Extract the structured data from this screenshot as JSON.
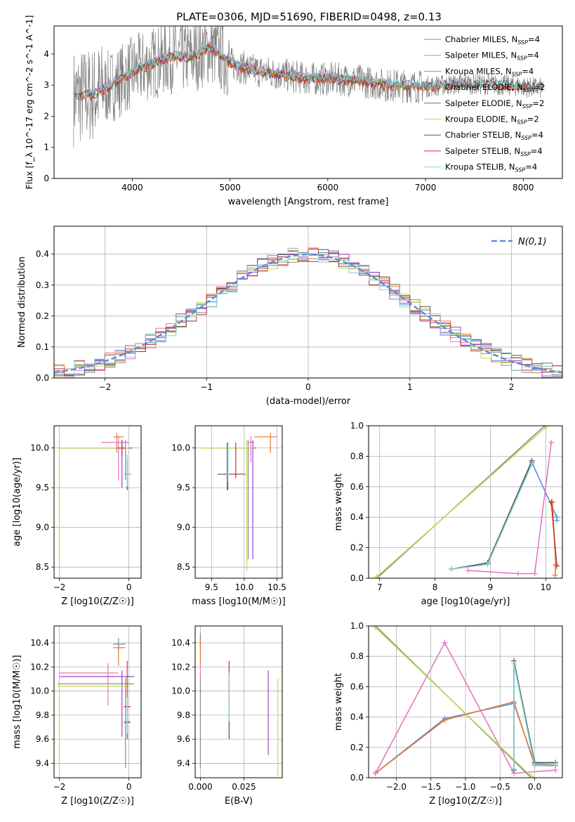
{
  "figure_title": "PLATE=0306, MJD=51690, FIBERID=0498, z=0.13",
  "colors": {
    "Chabrier MILES": "#5b8fd9",
    "Salpeter MILES": "#e377c2",
    "Kroupa MILES": "#e07b39",
    "Chabrier ELODIE": "#8c8c8c",
    "Salpeter ELODIE": "#a63fbf",
    "Kroupa ELODIE": "#c5d94c",
    "Chabrier STELIB": "#555555",
    "Salpeter STELIB": "#c0392b",
    "Kroupa STELIB": "#7fd6d6",
    "data": "#808080",
    "gaussian": "#5b8fd9"
  },
  "chart_data": [
    {
      "id": "spectrum",
      "type": "line",
      "title": "PLATE=0306, MJD=51690, FIBERID=0498, z=0.13",
      "xlabel": "wavelength [Angstrom, rest frame]",
      "ylabel": "Flux [f_λ 10^-17 erg cm^-2 s^-1 A^-1]",
      "xlim": [
        3200,
        8400
      ],
      "ylim": [
        0,
        4.9
      ],
      "xticks": [
        4000,
        5000,
        6000,
        7000,
        8000
      ],
      "yticks": [
        0,
        1,
        2,
        3,
        4
      ],
      "grid": false,
      "legend": "upper right",
      "legend_entries": [
        {
          "name": "Chabrier MILES",
          "sub": "SSP",
          "n": "4"
        },
        {
          "name": "Salpeter MILES",
          "sub": "SSP",
          "n": "4"
        },
        {
          "name": "Kroupa MILES",
          "sub": "SSP",
          "n": "4"
        },
        {
          "name": "Chabrier ELODIE",
          "sub": "SSP",
          "n": "2"
        },
        {
          "name": "Salpeter ELODIE",
          "sub": "SSP",
          "n": "2"
        },
        {
          "name": "Kroupa ELODIE",
          "sub": "SSP",
          "n": "2"
        },
        {
          "name": "Chabrier STELIB",
          "sub": "SSP",
          "n": "4"
        },
        {
          "name": "Salpeter STELIB",
          "sub": "SSP",
          "n": "4"
        },
        {
          "name": "Kroupa STELIB",
          "sub": "SSP",
          "n": "4"
        }
      ],
      "continuum_points": [
        [
          3400,
          2.6
        ],
        [
          3600,
          2.7
        ],
        [
          3800,
          3.0
        ],
        [
          4000,
          3.4
        ],
        [
          4200,
          3.7
        ],
        [
          4400,
          3.9
        ],
        [
          4600,
          3.9
        ],
        [
          4800,
          4.2
        ],
        [
          4900,
          3.95
        ],
        [
          5000,
          3.7
        ],
        [
          5200,
          3.5
        ],
        [
          5500,
          3.35
        ],
        [
          5800,
          3.2
        ],
        [
          6000,
          3.2
        ],
        [
          6300,
          3.15
        ],
        [
          6600,
          3.0
        ],
        [
          7000,
          2.95
        ],
        [
          7400,
          3.05
        ],
        [
          7800,
          3.0
        ],
        [
          8200,
          2.9
        ]
      ],
      "model_ranges": {
        "MILES": [
          3540,
          7410
        ],
        "ELODIE": [
          3900,
          6800
        ],
        "STELIB": [
          3400,
          8200
        ]
      }
    },
    {
      "id": "residual_hist",
      "type": "line",
      "xlabel": "(data-model)/error",
      "ylabel": "Normed distribution",
      "xlim": [
        -2.5,
        2.5
      ],
      "ylim": [
        0,
        0.49
      ],
      "xticks": [
        -2,
        -1,
        0,
        1,
        2
      ],
      "xtick_labels": [
        "−2",
        "−1",
        "0",
        "1",
        "2"
      ],
      "yticks": [
        0,
        0.1,
        0.2,
        0.3,
        0.4
      ],
      "ytick_labels": [
        "0.0",
        "0.1",
        "0.2",
        "0.3",
        "0.4"
      ],
      "grid": true,
      "legend": "upper right",
      "legend_label": "N(0,1)",
      "bin_width": 0.1,
      "bin_start": -2.5
    },
    {
      "id": "age_vs_Z",
      "type": "scatter",
      "xlabel": "Z [log10(Z/Z☉)]",
      "ylabel": "age [log10(age/yr)]",
      "xlim": [
        -2.15,
        0.35
      ],
      "ylim": [
        8.36,
        10.28
      ],
      "xticks": [
        -2,
        0
      ],
      "xtick_labels": [
        "−2",
        "0"
      ],
      "yticks": [
        8.5,
        9.0,
        9.5,
        10.0
      ],
      "ytick_labels": [
        "8.5",
        "9.0",
        "9.5",
        "10.0"
      ],
      "grid": true,
      "points": [
        {
          "model": "Chabrier MILES",
          "x": -0.05,
          "y": 9.67,
          "xerr": [
            0.08,
            0.08
          ],
          "yerr": [
            0.2,
            0.12
          ]
        },
        {
          "model": "Salpeter MILES",
          "x": -0.3,
          "y": 10.07,
          "xerr": [
            0.5,
            0.3
          ],
          "yerr": [
            0.48,
            0.08
          ]
        },
        {
          "model": "Kroupa MILES",
          "x": -0.35,
          "y": 10.14,
          "xerr": [
            0.1,
            0.2
          ],
          "yerr": [
            0.2,
            0.05
          ]
        },
        {
          "model": "Chabrier ELODIE",
          "x": -0.1,
          "y": 10.0,
          "xerr": [
            1.9,
            0.15
          ],
          "yerr": [
            0.4,
            0.1
          ]
        },
        {
          "model": "Salpeter ELODIE",
          "x": -0.2,
          "y": 10.0,
          "xerr": [
            1.8,
            0.3
          ],
          "yerr": [
            0.5,
            0.1
          ]
        },
        {
          "model": "Kroupa ELODIE",
          "x": -2.0,
          "y": 10.0,
          "xerr": [
            0.05,
            2.0
          ],
          "yerr": [
            1.5,
            0.15
          ]
        },
        {
          "model": "Chabrier STELIB",
          "x": -0.05,
          "y": 9.67,
          "xerr": [
            0.05,
            0.1
          ],
          "yerr": [
            0.2,
            0.2
          ]
        },
        {
          "model": "Salpeter STELIB",
          "x": -0.2,
          "y": 10.0,
          "xerr": [
            0.15,
            0.1
          ],
          "yerr": [
            0.1,
            0.1
          ]
        },
        {
          "model": "Kroupa STELIB",
          "x": -0.05,
          "y": 9.67,
          "xerr": [
            0.05,
            0.12
          ],
          "yerr": [
            0.15,
            0.25
          ]
        }
      ]
    },
    {
      "id": "age_vs_mass",
      "type": "scatter",
      "xlabel": "mass [log10(M/M☉)]",
      "ylabel": "",
      "xlim": [
        9.25,
        10.58
      ],
      "ylim": [
        8.36,
        10.28
      ],
      "xticks": [
        9.5,
        10.0,
        10.5
      ],
      "xtick_labels": [
        "9.5",
        "10.0",
        "10.5"
      ],
      "yticks": [
        8.5,
        9.0,
        9.5,
        10.0
      ],
      "ytick_labels": [
        "8.5",
        "9.0",
        "9.5",
        "10.0"
      ],
      "grid": true,
      "points": [
        {
          "model": "Chabrier MILES",
          "x": 9.75,
          "y": 9.67,
          "xerr": [
            0.05,
            0.05
          ],
          "yerr": [
            0.2,
            0.4
          ]
        },
        {
          "model": "Salpeter MILES",
          "x": 10.1,
          "y": 10.07,
          "xerr": [
            0.05,
            0.05
          ],
          "yerr": [
            0.25,
            0.08
          ]
        },
        {
          "model": "Kroupa MILES",
          "x": 10.4,
          "y": 10.14,
          "xerr": [
            0.25,
            0.1
          ],
          "yerr": [
            0.2,
            0.05
          ]
        },
        {
          "model": "Chabrier ELODIE",
          "x": 10.06,
          "y": 10.0,
          "xerr": [
            0.7,
            0.1
          ],
          "yerr": [
            1.4,
            0.1
          ]
        },
        {
          "model": "Salpeter ELODIE",
          "x": 10.13,
          "y": 10.0,
          "xerr": [
            0.05,
            0.05
          ],
          "yerr": [
            1.4,
            0.1
          ]
        },
        {
          "model": "Kroupa ELODIE",
          "x": 10.04,
          "y": 10.0,
          "xerr": [
            0.7,
            0.1
          ],
          "yerr": [
            1.55,
            0.1
          ]
        },
        {
          "model": "Chabrier STELIB",
          "x": 9.74,
          "y": 9.67,
          "xerr": [
            0.15,
            0.25
          ],
          "yerr": [
            0.2,
            0.4
          ]
        },
        {
          "model": "Salpeter STELIB",
          "x": 9.87,
          "y": 9.67,
          "xerr": [
            0.1,
            0.15
          ],
          "yerr": [
            0.05,
            0.4
          ]
        },
        {
          "model": "Kroupa STELIB",
          "x": 9.75,
          "y": 9.67,
          "xerr": [
            0.02,
            0.02
          ],
          "yerr": [
            0.1,
            0.4
          ]
        }
      ]
    },
    {
      "id": "massweight_vs_age",
      "type": "line",
      "xlabel": "age [log10(age/yr)]",
      "ylabel": "mass weight",
      "xlim": [
        6.8,
        10.3
      ],
      "ylim": [
        0,
        1.0
      ],
      "xticks": [
        7,
        8,
        9,
        10
      ],
      "xtick_labels": [
        "7",
        "8",
        "9",
        "10"
      ],
      "yticks": [
        0,
        0.2,
        0.4,
        0.6,
        0.8,
        1.0
      ],
      "ytick_labels": [
        "0.0",
        "0.2",
        "0.4",
        "0.6",
        "0.8",
        "1.0"
      ],
      "grid": true,
      "series": [
        {
          "model": "Chabrier MILES",
          "x": [
            8.3,
            8.95,
            9.75,
            10.2,
            10.2
          ],
          "y": [
            0.06,
            0.1,
            0.76,
            0.4,
            0.38
          ]
        },
        {
          "model": "Kroupa MILES",
          "x": [
            10.12,
            10.18,
            10.17
          ],
          "y": [
            0.5,
            0.09,
            0.02
          ]
        },
        {
          "model": "Salpeter MILES",
          "x": [
            8.6,
            9.5,
            9.8,
            10.1
          ],
          "y": [
            0.05,
            0.03,
            0.03,
            0.89
          ]
        },
        {
          "model": "Chabrier ELODIE",
          "x": [
            6.95,
            9.98
          ],
          "y": [
            0.0,
            1.0
          ]
        },
        {
          "model": "Kroupa ELODIE",
          "x": [
            6.95,
            10.0
          ],
          "y": [
            0.01,
            0.99
          ]
        },
        {
          "model": "Chabrier STELIB",
          "x": [
            8.3,
            8.95,
            9.75
          ],
          "y": [
            0.06,
            0.1,
            0.77
          ]
        },
        {
          "model": "Salpeter STELIB",
          "x": [
            10.1,
            10.2
          ],
          "y": [
            0.5,
            0.08
          ]
        },
        {
          "model": "Kroupa STELIB",
          "x": [
            8.3,
            8.95,
            9.75
          ],
          "y": [
            0.06,
            0.09,
            0.75
          ]
        }
      ]
    },
    {
      "id": "mass_vs_Z",
      "type": "scatter",
      "xlabel": "Z [log10(Z/Z☉)]",
      "ylabel": "mass [log10(M/M☉)]",
      "xlim": [
        -2.15,
        0.35
      ],
      "ylim": [
        9.28,
        10.54
      ],
      "xticks": [
        -2,
        0
      ],
      "xtick_labels": [
        "−2",
        "0"
      ],
      "yticks": [
        9.4,
        9.6,
        9.8,
        10.0,
        10.2,
        10.4
      ],
      "ytick_labels": [
        "9.4",
        "9.6",
        "9.8",
        "10.0",
        "10.2",
        "10.4"
      ],
      "grid": true,
      "points": [
        {
          "model": "Chabrier MILES",
          "x": -0.3,
          "y": 10.39,
          "xerr": [
            0.15,
            0.2
          ],
          "yerr": [
            0.05,
            0.05
          ]
        },
        {
          "model": "Salpeter MILES",
          "x": -0.6,
          "y": 10.15,
          "xerr": [
            1.4,
            0.3
          ],
          "yerr": [
            0.27,
            0.08
          ]
        },
        {
          "model": "Kroupa MILES",
          "x": -0.3,
          "y": 10.36,
          "xerr": [
            0.15,
            0.2
          ],
          "yerr": [
            0.15,
            0.05
          ]
        },
        {
          "model": "Chabrier ELODIE",
          "x": -0.1,
          "y": 10.06,
          "xerr": [
            1.95,
            0.25
          ],
          "yerr": [
            0.7,
            0.05
          ]
        },
        {
          "model": "Salpeter ELODIE",
          "x": -0.2,
          "y": 10.12,
          "xerr": [
            1.8,
            0.35
          ],
          "yerr": [
            0.5,
            0.05
          ]
        },
        {
          "model": "Kroupa ELODIE",
          "x": -2.0,
          "y": 10.04,
          "xerr": [
            0.05,
            2.0
          ],
          "yerr": [
            0.7,
            0.05
          ]
        },
        {
          "model": "Chabrier STELIB",
          "x": -0.05,
          "y": 9.74,
          "xerr": [
            0.1,
            0.1
          ],
          "yerr": [
            0.14,
            0.15
          ]
        },
        {
          "model": "Salpeter STELIB",
          "x": -0.05,
          "y": 9.87,
          "xerr": [
            0.1,
            0.1
          ],
          "yerr": [
            0.05,
            0.38
          ]
        },
        {
          "model": "Kroupa STELIB",
          "x": -0.05,
          "y": 9.75,
          "xerr": [
            0.08,
            0.08
          ],
          "yerr": [
            0.1,
            0.2
          ]
        }
      ]
    },
    {
      "id": "mass_vs_EBV",
      "type": "scatter",
      "xlabel": "E(B-V)",
      "ylabel": "",
      "xlim": [
        -0.003,
        0.047
      ],
      "ylim": [
        9.28,
        10.54
      ],
      "xticks": [
        0.0,
        0.025
      ],
      "xtick_labels": [
        "0.000",
        "0.025"
      ],
      "yticks": [
        9.4,
        9.6,
        9.8,
        10.0,
        10.2,
        10.4
      ],
      "ytick_labels": [
        "9.4",
        "9.6",
        "9.8",
        "10.0",
        "10.2",
        "10.4"
      ],
      "grid": true,
      "points": [
        {
          "model": "Chabrier MILES",
          "x": 0.0,
          "y": 10.39,
          "yerr": [
            0.05,
            0.09
          ]
        },
        {
          "model": "Salpeter MILES",
          "x": 0.0,
          "y": 10.15,
          "yerr": [
            0.27,
            0.3
          ]
        },
        {
          "model": "Kroupa MILES",
          "x": 0.0,
          "y": 10.36,
          "yerr": [
            0.15,
            0.1
          ]
        },
        {
          "model": "Chabrier ELODIE",
          "x": 0.0,
          "y": 10.06,
          "yerr": [
            0.7,
            0.05
          ]
        },
        {
          "model": "Salpeter ELODIE",
          "x": 0.039,
          "y": 9.82,
          "yerr": [
            0.35,
            0.35
          ]
        },
        {
          "model": "Kroupa ELODIE",
          "x": 0.0445,
          "y": 9.7,
          "yerr": [
            0.4,
            0.4
          ]
        },
        {
          "model": "Chabrier STELIB",
          "x": 0.0165,
          "y": 9.74,
          "yerr": [
            0.14,
            0.4
          ]
        },
        {
          "model": "Salpeter STELIB",
          "x": 0.0165,
          "y": 10.05,
          "yerr": [
            0.15,
            0.2
          ]
        },
        {
          "model": "Kroupa STELIB",
          "x": 0.0165,
          "y": 9.9,
          "yerr": [
            0.15,
            0.25
          ]
        }
      ]
    },
    {
      "id": "massweight_vs_Z",
      "type": "line",
      "xlabel": "Z [log10(Z/Z☉)]",
      "ylabel": "mass weight",
      "xlim": [
        -2.4,
        0.4
      ],
      "ylim": [
        0,
        1.0
      ],
      "xticks": [
        -2.0,
        -1.5,
        -1.0,
        -0.5,
        0.0
      ],
      "xtick_labels": [
        "−2.0",
        "−1.5",
        "−1.0",
        "−0.5",
        "0.0"
      ],
      "yticks": [
        0,
        0.2,
        0.4,
        0.6,
        0.8,
        1.0
      ],
      "ytick_labels": [
        "0.0",
        "0.2",
        "0.4",
        "0.6",
        "0.8",
        "1.0"
      ],
      "grid": true,
      "series": [
        {
          "model": "Chabrier MILES",
          "x": [
            -2.3,
            -1.3,
            -0.3,
            0.0,
            0.3
          ],
          "y": [
            0.03,
            0.39,
            0.49,
            0.09,
            0.09
          ]
        },
        {
          "model": "Kroupa MILES",
          "x": [
            -2.3,
            -1.3,
            -0.3,
            0.0,
            0.3
          ],
          "y": [
            0.03,
            0.38,
            0.5,
            0.08,
            0.08
          ]
        },
        {
          "model": "Salpeter MILES",
          "x": [
            -2.3,
            -1.3,
            -0.3,
            0.3
          ],
          "y": [
            0.03,
            0.89,
            0.03,
            0.05
          ]
        },
        {
          "model": "Chabrier ELODIE",
          "x": [
            -2.3,
            -0.05
          ],
          "y": [
            1.0,
            0.0
          ]
        },
        {
          "model": "Kroupa ELODIE",
          "x": [
            -2.3,
            -0.05
          ],
          "y": [
            0.99,
            0.01
          ]
        },
        {
          "model": "Chabrier STELIB",
          "x": [
            -0.3,
            -0.3,
            0.0,
            0.3
          ],
          "y": [
            0.05,
            0.77,
            0.1,
            0.1
          ]
        },
        {
          "model": "Kroupa STELIB",
          "x": [
            -0.3,
            -0.3,
            0.0,
            0.3
          ],
          "y": [
            0.06,
            0.75,
            0.08,
            0.09
          ]
        }
      ]
    }
  ]
}
